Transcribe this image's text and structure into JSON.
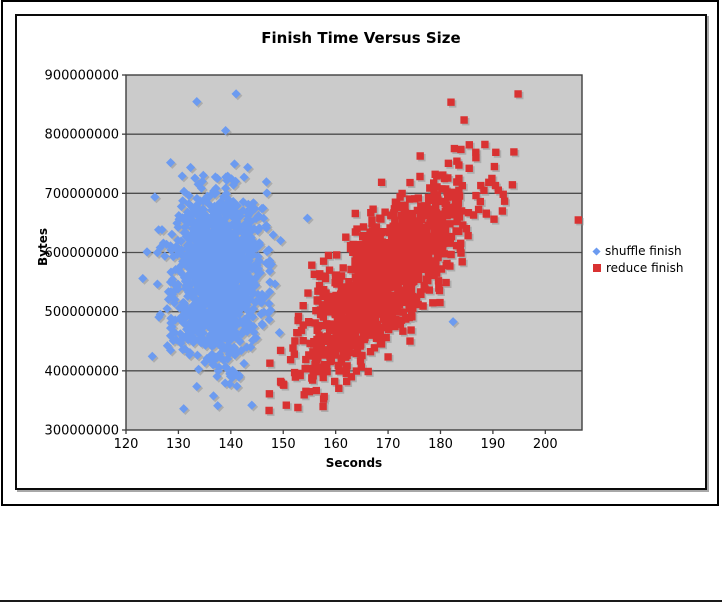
{
  "page": {
    "background_color": "#FFFFFF"
  },
  "chart_data": {
    "type": "scatter",
    "title": "Finish Time Versus Size",
    "xlabel": "Seconds",
    "ylabel": "Bytes",
    "xlim": [
      120,
      207
    ],
    "ylim": [
      300000000,
      900000000
    ],
    "x_ticks": [
      120,
      130,
      140,
      150,
      160,
      170,
      180,
      190,
      200
    ],
    "y_ticks": [
      300000000,
      400000000,
      500000000,
      600000000,
      700000000,
      800000000,
      900000000
    ],
    "grid": "horizontal-major",
    "legend_position": "right",
    "plot_bg_color": "#CBCBCB",
    "gridline_color": "#4D4D4D",
    "marker_shadow_color": "#8E8E8E",
    "seed": 1337,
    "series": [
      {
        "name": "shuffle finish",
        "marker": "diamond",
        "color": "#6C9BF0",
        "approx_point_count": 1400,
        "distribution": {
          "count": 1400,
          "x_mean": 137.5,
          "x_sd": 4.2,
          "x_range": [
            122,
            149.5
          ],
          "y_mean": 558000000,
          "y_slope_per_second": 0,
          "y_sd": 70000000,
          "y_range": [
            335000000,
            775000000
          ]
        },
        "outlier_points": [
          [
            133.5,
            855000000
          ],
          [
            141,
            868000000
          ],
          [
            139,
            806000000
          ],
          [
            128.5,
            752000000
          ],
          [
            124,
            601000000
          ],
          [
            123.2,
            556000000
          ],
          [
            131,
            336000000
          ],
          [
            137.5,
            341000000
          ],
          [
            144,
            342000000
          ],
          [
            154.6,
            658000000
          ],
          [
            182.4,
            483000000
          ]
        ]
      },
      {
        "name": "reduce finish",
        "marker": "square",
        "color": "#D93232",
        "approx_point_count": 1400,
        "distribution": {
          "count": 1400,
          "x_mean": 169.5,
          "x_sd": 7.5,
          "x_range": [
            146,
            196.5
          ],
          "y_mean": 560000000,
          "y_slope_per_second": 7800000,
          "y_sd": 52000000,
          "y_range": [
            330000000,
            880000000
          ]
        },
        "outlier_points": [
          [
            206.3,
            655000000
          ],
          [
            194.8,
            868000000
          ],
          [
            182,
            854000000
          ],
          [
            184.5,
            824000000
          ],
          [
            194,
            770000000
          ],
          [
            185.5,
            782000000
          ],
          [
            147.3,
            333000000
          ],
          [
            152.8,
            338000000
          ],
          [
            149.5,
            382000000
          ],
          [
            190.5,
            713000000
          ]
        ]
      }
    ]
  }
}
